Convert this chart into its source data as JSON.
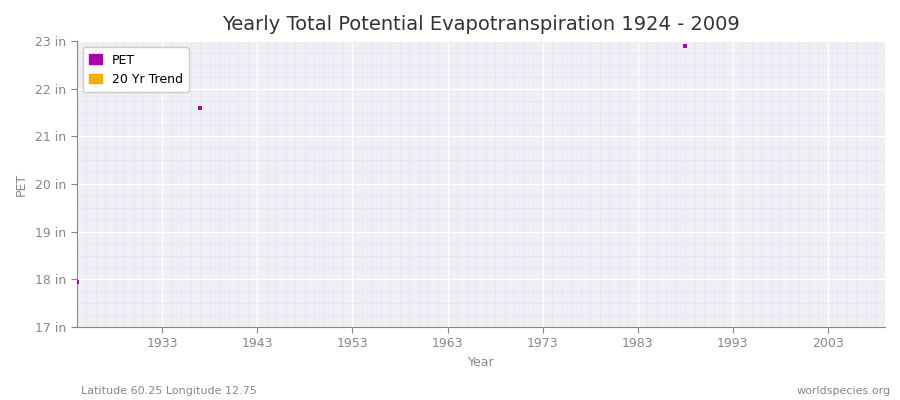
{
  "title": "Yearly Total Potential Evapotranspiration 1924 - 2009",
  "xlabel": "Year",
  "ylabel": "PET",
  "subtitle_left": "Latitude 60.25 Longitude 12.75",
  "subtitle_right": "worldspecies.org",
  "ylim": [
    17,
    23
  ],
  "xlim": [
    1924,
    2009
  ],
  "ytick_labels": [
    "17 in",
    "18 in",
    "19 in",
    "20 in",
    "21 in",
    "22 in",
    "23 in"
  ],
  "ytick_values": [
    17,
    18,
    19,
    20,
    21,
    22,
    23
  ],
  "xtick_values": [
    1933,
    1943,
    1953,
    1963,
    1973,
    1983,
    1993,
    2003
  ],
  "pet_color": "#aa00aa",
  "trend_color": "#ffaa00",
  "bg_color": "#ffffff",
  "plot_bg_color": "#eeeef5",
  "grid_color": "#ffffff",
  "grid_minor_color": "#ddddee",
  "data_points": [
    {
      "year": 1924,
      "value": 17.95
    },
    {
      "year": 1937,
      "value": 21.6
    },
    {
      "year": 1988,
      "value": 22.9
    }
  ],
  "legend_pet_label": "PET",
  "legend_trend_label": "20 Yr Trend",
  "title_fontsize": 14,
  "label_fontsize": 9,
  "tick_fontsize": 9,
  "axis_color": "#888888",
  "tick_color": "#888888"
}
